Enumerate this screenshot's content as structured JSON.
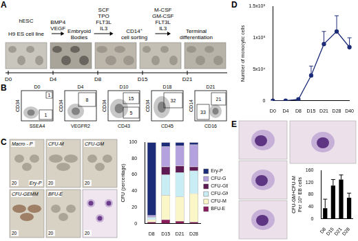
{
  "panel_letters": [
    "A",
    "B",
    "C",
    "D",
    "E"
  ],
  "scheme": {
    "start": "hESC",
    "stages": [
      [
        "H9 ES cell line"
      ],
      [
        "Embryoid",
        "Bodies"
      ],
      [
        "CD14⁺",
        "cell sorting"
      ],
      [
        "Terminal",
        "differentiation"
      ]
    ],
    "factors": [
      [
        "BMP4",
        "VEGF"
      ],
      [
        "SCF",
        "TPO",
        "FLT3L",
        "IL3"
      ],
      [
        "M-CSF",
        "GM-CSF",
        "FLT3L",
        "IL3"
      ]
    ],
    "timeline": [
      "D0",
      "D4",
      "D8",
      "D15",
      "D21"
    ]
  },
  "flow": [
    {
      "day": "D0",
      "x": "SSEA4",
      "y": "CD34",
      "gates": [
        1,
        1
      ]
    },
    {
      "day": "D4",
      "x": "VEGFR2",
      "y": "CD34",
      "gates": [
        8
      ]
    },
    {
      "day": "D10",
      "x": "CD43",
      "y": "CD34",
      "gates": [
        15,
        5
      ]
    },
    {
      "day": "D18",
      "x": "CD45",
      "y": "CD34",
      "gates": [
        32
      ]
    },
    {
      "day": "D21",
      "x": "CD16",
      "y": "CD14",
      "gates": [
        33,
        21
      ]
    }
  ],
  "colonies": {
    "photos": [
      [
        "Macro - P",
        "Ery-P"
      ],
      [
        "CFU-M"
      ],
      [
        "CFU-GM"
      ],
      [
        "CFU-GEMM"
      ],
      [
        "BFU-E"
      ],
      []
    ],
    "scale": "20"
  },
  "chart_data": [
    {
      "type": "bar",
      "stacked": true,
      "ylabel": "CFU (percentage)",
      "categories": [
        "D8",
        "D15",
        "D21",
        "D28"
      ],
      "series": [
        {
          "name": "BFU-E",
          "color": "#8c1d5c",
          "values": [
            2,
            5,
            3,
            2
          ]
        },
        {
          "name": "CFU-M",
          "color": "#fbf6c8",
          "values": [
            3,
            30,
            30,
            35
          ]
        },
        {
          "name": "CFU-GM",
          "color": "#c9edf4",
          "values": [
            3,
            25,
            30,
            28
          ]
        },
        {
          "name": "CFU-GEMM",
          "color": "#5e1a52",
          "values": [
            0,
            10,
            8,
            5
          ]
        },
        {
          "name": "CFU-G",
          "color": "#b3a2dd",
          "values": [
            2,
            25,
            25,
            27
          ]
        },
        {
          "name": "Ery-P",
          "color": "#1d2c78",
          "values": [
            90,
            5,
            4,
            3
          ]
        }
      ],
      "ylim": [
        0,
        100
      ],
      "yticks": [
        0,
        20,
        40,
        60,
        80,
        100
      ],
      "grid": false,
      "legend": "right"
    },
    {
      "type": "line",
      "ylabel": "Number of monocytic cells",
      "categories": [
        "D0",
        "D4",
        "D8",
        "D15",
        "D21",
        "D28",
        "D40"
      ],
      "values": [
        0,
        0,
        2000,
        40000,
        90000,
        110000,
        85000
      ],
      "errors": [
        null,
        null,
        null,
        15000,
        20000,
        25000,
        15000
      ],
      "color": "#1d2c78",
      "marker": "circle",
      "ylim": [
        0,
        150000
      ],
      "yticks": [
        0,
        {
          "value": 50000,
          "label": "5x10⁴"
        },
        {
          "value": 100000,
          "label": "1x10⁵"
        },
        {
          "value": 150000,
          "label": "1.5x10⁵"
        }
      ],
      "grid": false
    },
    {
      "type": "bar",
      "ylabel": [
        "CFU-GM+CFU-M",
        "Per 10⁵ EB cells"
      ],
      "categories": [
        "D8",
        "D15",
        "D21",
        "D28"
      ],
      "values": [
        35,
        110,
        130,
        70
      ],
      "errors": [
        30,
        20,
        15,
        15
      ],
      "color": "#000000",
      "ylim": [
        0,
        160
      ],
      "yticks": [
        0,
        40,
        80,
        120,
        160
      ],
      "grid": false
    }
  ]
}
